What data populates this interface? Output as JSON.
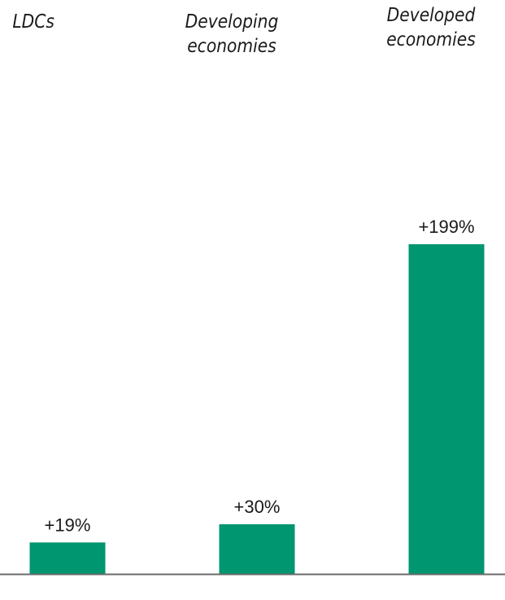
{
  "chart_data": {
    "type": "bar",
    "categories": [
      "LDCs",
      "Developing economies",
      "Developed economies"
    ],
    "values": [
      19,
      30,
      199
    ],
    "value_labels": [
      "+19%",
      "+30%",
      "+199%"
    ],
    "ylim": [
      0,
      270
    ],
    "grid": false,
    "legend": "none",
    "colors": {
      "bar": "#009670",
      "axis": "#6b6b6b",
      "text": "#1a1a1a"
    }
  }
}
